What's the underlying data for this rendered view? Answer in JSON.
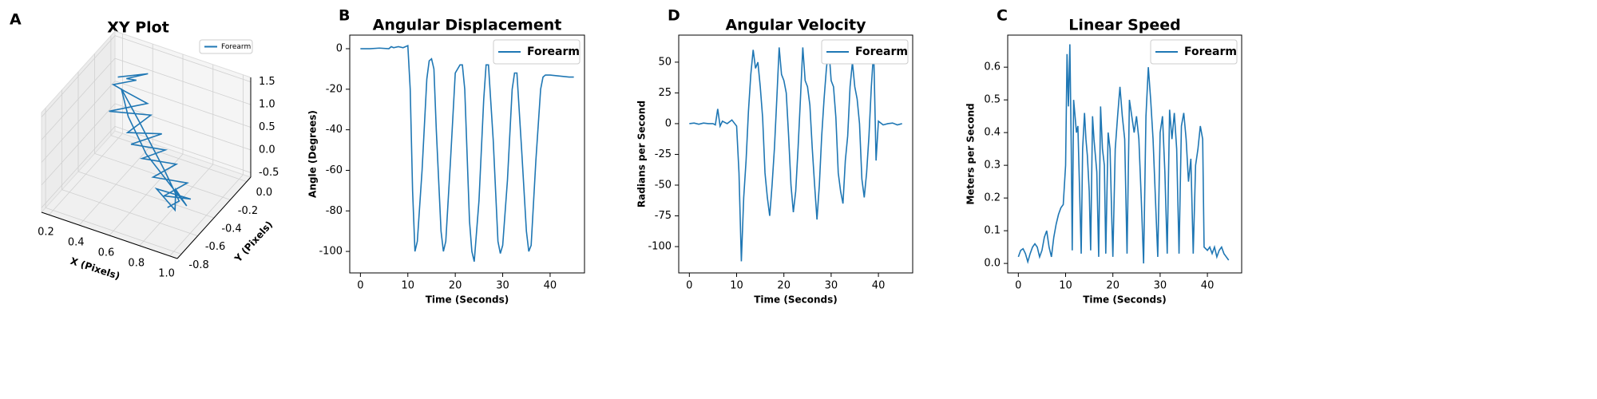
{
  "chart_data": [
    {
      "type": "line3d",
      "panel_label": "A",
      "title": "XY Plot",
      "xlabel": "X (Pixels)",
      "ylabel": "Y (Pixels)",
      "xlim": [
        0.15,
        1.05
      ],
      "ylim": [
        -0.85,
        0.05
      ],
      "zlim": [
        -0.6,
        1.6
      ],
      "xticks": [
        0.2,
        0.4,
        0.6,
        0.8,
        {
          "value": 1,
          "label": "1.0"
        }
      ],
      "yticks": [
        {
          "value": 0,
          "label": "0.0"
        },
        -0.2,
        -0.4,
        -0.6,
        -0.8
      ],
      "zticks": [
        1.5,
        {
          "value": 1,
          "label": "1.0"
        },
        0.5,
        {
          "value": 0,
          "label": "0.0"
        },
        -0.5
      ],
      "legend": "upper right",
      "grid": true,
      "series": [
        {
          "name": "Forearm",
          "color": "#1f77b4",
          "x": [
            0.25,
            0.45,
            0.28,
            0.4,
            0.22,
            0.35,
            0.5,
            0.3,
            0.55,
            0.45,
            0.65,
            0.5,
            0.7,
            0.6,
            0.8,
            0.7,
            0.9,
            0.8,
            0.95,
            0.75,
            0.9,
            0.85,
            0.95,
            0.6,
            0.4,
            0.3,
            0.5,
            0.75,
            0.9,
            0.85
          ],
          "y": [
            -0.1,
            -0.1,
            -0.05,
            -0.15,
            -0.1,
            -0.2,
            -0.2,
            -0.3,
            -0.25,
            -0.35,
            -0.3,
            -0.4,
            -0.35,
            -0.45,
            -0.4,
            -0.5,
            -0.45,
            -0.55,
            -0.5,
            -0.55,
            -0.6,
            -0.5,
            -0.55,
            -0.4,
            -0.25,
            -0.15,
            -0.3,
            -0.45,
            -0.55,
            -0.6
          ],
          "z": [
            1.0,
            1.3,
            0.9,
            1.2,
            0.8,
            1.0,
            0.9,
            0.7,
            0.8,
            0.5,
            0.6,
            0.4,
            0.4,
            0.3,
            0.3,
            0.1,
            0.1,
            -0.1,
            -0.1,
            0.0,
            -0.2,
            0.0,
            -0.15,
            0.3,
            0.6,
            0.9,
            0.7,
            0.2,
            -0.1,
            -0.2
          ]
        }
      ]
    },
    {
      "type": "line",
      "panel_label": "B",
      "title": "Angular Displacement",
      "xlabel": "Time (Seconds)",
      "ylabel": "Angle (Degrees)",
      "xlim": [
        -2.25,
        47.25
      ],
      "ylim": [
        -110.6,
        6.7
      ],
      "xticks": [
        0,
        10,
        20,
        30,
        40
      ],
      "yticks": [
        0,
        -20,
        -40,
        -60,
        -80,
        -100
      ],
      "legend": "upper right",
      "x": [
        0,
        2,
        4,
        6,
        6.5,
        7,
        8,
        9,
        10,
        10.5,
        11,
        11.5,
        12,
        13,
        14,
        14.5,
        15,
        15.5,
        16,
        17,
        17.5,
        18,
        19,
        20,
        21,
        21.5,
        22,
        23,
        23.5,
        24,
        25,
        26,
        26.5,
        27,
        28,
        29,
        29.5,
        30,
        31,
        32,
        32.5,
        33,
        34,
        35,
        35.5,
        36,
        37,
        38,
        38.5,
        39,
        40,
        42,
        44,
        45
      ],
      "series": [
        {
          "name": "Forearm",
          "color": "#1f77b4",
          "values": [
            0,
            0,
            0.3,
            0,
            1,
            0.5,
            1,
            0.5,
            1.5,
            -20,
            -70,
            -100,
            -95,
            -60,
            -15,
            -6,
            -5,
            -10,
            -40,
            -90,
            -100,
            -95,
            -55,
            -12,
            -8,
            -8,
            -20,
            -85,
            -100,
            -105,
            -75,
            -25,
            -8,
            -8,
            -45,
            -95,
            -101,
            -97,
            -65,
            -20,
            -12,
            -12,
            -50,
            -90,
            -100,
            -97,
            -55,
            -20,
            -14,
            -13,
            -13,
            -13.5,
            -14,
            -14
          ]
        }
      ]
    },
    {
      "type": "line",
      "panel_label": "D",
      "title": "Angular Velocity",
      "xlabel": "Time (Seconds)",
      "ylabel": "Radians per Second",
      "xlim": [
        -2.25,
        47.25
      ],
      "ylim": [
        -121.4,
        72
      ],
      "xticks": [
        0,
        10,
        20,
        30,
        40
      ],
      "yticks": [
        50,
        25,
        0,
        -25,
        -50,
        -75,
        -100
      ],
      "legend": "upper right",
      "x": [
        0,
        1,
        2,
        3,
        4,
        5,
        5.5,
        6,
        6.5,
        7,
        8,
        9,
        10,
        10.5,
        11,
        11.5,
        12,
        12.5,
        13,
        13.5,
        14,
        14.5,
        15,
        15.5,
        16,
        16.5,
        17,
        17.5,
        18,
        18.5,
        19,
        19.5,
        20,
        20.5,
        21,
        21.5,
        22,
        22.5,
        23,
        23.5,
        24,
        24.5,
        25,
        25.5,
        26,
        26.5,
        27,
        27.5,
        28,
        28.5,
        29,
        29.5,
        30,
        30.5,
        31,
        31.5,
        32,
        32.5,
        33,
        33.5,
        34,
        34.5,
        35,
        35.5,
        36,
        36.5,
        37,
        37.5,
        38,
        38.5,
        39,
        39.5,
        40,
        41,
        42,
        43,
        44,
        45
      ],
      "series": [
        {
          "name": "Forearm",
          "color": "#1f77b4",
          "values": [
            0,
            0.5,
            -0.5,
            0.5,
            0,
            0,
            -1,
            12,
            -2,
            2,
            0,
            3,
            -2,
            -40,
            -112,
            -60,
            -30,
            10,
            40,
            60,
            45,
            50,
            30,
            5,
            -40,
            -60,
            -75,
            -50,
            -20,
            20,
            62,
            40,
            35,
            25,
            -10,
            -50,
            -72,
            -55,
            -20,
            20,
            62,
            35,
            30,
            15,
            -20,
            -50,
            -78,
            -50,
            -10,
            20,
            45,
            62,
            35,
            30,
            5,
            -40,
            -55,
            -65,
            -30,
            -10,
            30,
            50,
            30,
            20,
            0,
            -45,
            -60,
            -40,
            -10,
            30,
            60,
            -30,
            2,
            -1,
            0,
            0.5,
            -1,
            0
          ]
        }
      ]
    },
    {
      "type": "line",
      "panel_label": "C",
      "title": "Linear Speed",
      "xlabel": "Time (Seconds)",
      "ylabel": "Meters per Second",
      "xlim": [
        -2.25,
        47.25
      ],
      "ylim": [
        -0.029,
        0.698
      ],
      "xticks": [
        0,
        10,
        20,
        30,
        40
      ],
      "yticks": [
        {
          "value": 0,
          "label": "0.0"
        },
        0.1,
        0.2,
        0.3,
        0.4,
        0.5,
        0.6
      ],
      "legend": "upper right",
      "x": [
        0,
        0.5,
        1,
        1.5,
        2,
        2.5,
        3,
        3.5,
        4,
        4.5,
        5,
        5.5,
        6,
        6.5,
        7,
        7.5,
        8,
        8.5,
        9,
        9.5,
        10,
        10.3,
        10.6,
        10.9,
        11.2,
        11.4,
        11.7,
        12,
        12.3,
        12.6,
        13,
        13.3,
        13.6,
        14,
        14.3,
        14.6,
        15,
        15.3,
        15.7,
        16,
        16.3,
        16.6,
        17,
        17.4,
        17.8,
        18.2,
        18.5,
        19,
        19.4,
        19.8,
        20,
        20.5,
        21,
        21.5,
        22,
        22.5,
        23,
        23.5,
        24,
        24.5,
        25,
        25.5,
        26,
        26.5,
        27,
        27.5,
        28,
        28.5,
        29,
        29.5,
        30,
        30.5,
        31,
        31.5,
        32,
        32.5,
        33,
        33.5,
        34,
        34.5,
        35,
        35.5,
        36,
        36.5,
        37,
        37.5,
        38,
        38.5,
        39,
        39.3,
        40,
        40.5,
        41,
        41.5,
        42,
        42.5,
        43,
        43.5,
        44,
        44.5
      ],
      "series": [
        {
          "name": "Forearm",
          "color": "#1f77b4",
          "values": [
            0.02,
            0.04,
            0.045,
            0.03,
            0.005,
            0.03,
            0.05,
            0.06,
            0.05,
            0.02,
            0.04,
            0.08,
            0.1,
            0.05,
            0.02,
            0.08,
            0.12,
            0.15,
            0.17,
            0.18,
            0.3,
            0.64,
            0.48,
            0.67,
            0.35,
            0.04,
            0.5,
            0.45,
            0.4,
            0.42,
            0.2,
            0.03,
            0.35,
            0.46,
            0.38,
            0.33,
            0.22,
            0.04,
            0.45,
            0.38,
            0.33,
            0.28,
            0.02,
            0.48,
            0.35,
            0.3,
            0.03,
            0.4,
            0.35,
            0.12,
            0.02,
            0.35,
            0.45,
            0.54,
            0.45,
            0.38,
            0.03,
            0.5,
            0.45,
            0.4,
            0.45,
            0.38,
            0.2,
            0,
            0.45,
            0.6,
            0.5,
            0.38,
            0.2,
            0.02,
            0.4,
            0.45,
            0.28,
            0.03,
            0.47,
            0.38,
            0.46,
            0.35,
            0.03,
            0.42,
            0.46,
            0.38,
            0.25,
            0.32,
            0.03,
            0.3,
            0.35,
            0.42,
            0.38,
            0.05,
            0.04,
            0.05,
            0.03,
            0.05,
            0.02,
            0.04,
            0.05,
            0.03,
            0.02,
            0.01
          ]
        }
      ]
    }
  ]
}
